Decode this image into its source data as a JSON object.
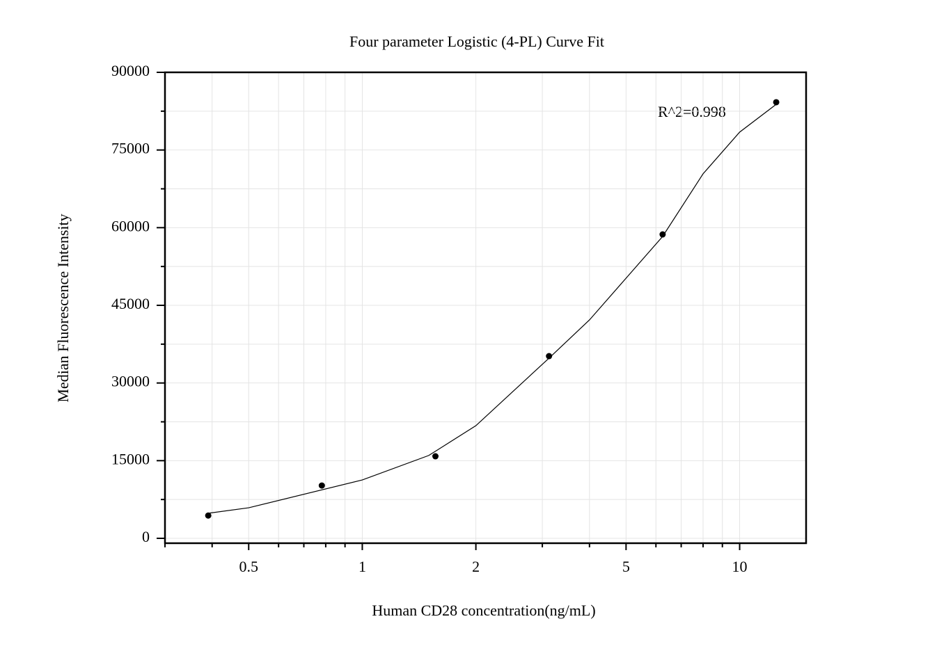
{
  "chart_data": {
    "type": "scatter",
    "title": "Four parameter Logistic (4-PL) Curve Fit",
    "x_label": "Human CD28 concentration(ng/mL)",
    "y_label": "Median Fluorescence Intensity",
    "annotation": "R^2=0.998",
    "x_scale": "log",
    "grid": true,
    "xlim": [
      0.3,
      15
    ],
    "ylim": [
      -940,
      90000
    ],
    "xticks": [
      0.5,
      1,
      2,
      5,
      10
    ],
    "xminorticks": [
      0.3,
      0.4,
      0.6,
      0.7,
      0.8,
      0.9,
      3,
      4,
      6,
      7,
      8,
      9
    ],
    "yticks": [
      0,
      15000,
      30000,
      45000,
      60000,
      75000,
      90000
    ],
    "yminorticks": [
      7500,
      22500,
      37500,
      52500,
      67500,
      82500
    ],
    "series": [
      {
        "type": "scatter",
        "color": "#000000",
        "x": [
          0.390625,
          0.78125,
          1.5625,
          3.125,
          6.25,
          12.5
        ],
        "values": [
          4400,
          10200,
          15850,
          35190,
          58700,
          84230
        ]
      },
      {
        "type": "line",
        "color": "#000000",
        "x": [
          0.39,
          0.5,
          1,
          1.5,
          2,
          3.125,
          4,
          5,
          6.25,
          8,
          10,
          12.5
        ],
        "values": [
          4840,
          5900,
          11280,
          16000,
          21760,
          34800,
          42180,
          50240,
          58300,
          70400,
          78450,
          83820
        ]
      }
    ]
  }
}
